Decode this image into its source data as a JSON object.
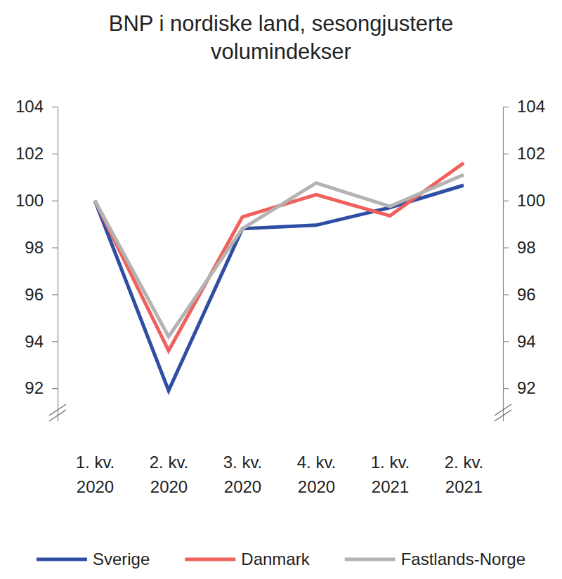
{
  "chart_data": {
    "type": "line",
    "title": "BNP i nordiske land, sesongjusterte volumindekser",
    "categories": [
      "1. kv. 2020",
      "2. kv. 2020",
      "3. kv. 2020",
      "4. kv. 2020",
      "1. kv. 2021",
      "2. kv. 2021"
    ],
    "series": [
      {
        "name": "Sverige",
        "color": "#2e4ea3",
        "values": [
          100,
          91.9,
          98.8,
          98.95,
          99.7,
          100.65
        ]
      },
      {
        "name": "Danmark",
        "color": "#f0605d",
        "values": [
          100,
          93.6,
          99.3,
          100.25,
          99.35,
          101.6
        ]
      },
      {
        "name": "Fastlands-Norge",
        "color": "#b3b3b3",
        "values": [
          100,
          94.2,
          98.8,
          100.75,
          99.75,
          101.1
        ]
      }
    ],
    "ylim": [
      90.6,
      104
    ],
    "yticks": [
      92,
      94,
      96,
      98,
      100,
      102,
      104
    ],
    "grid": false,
    "legend": "bottom"
  }
}
